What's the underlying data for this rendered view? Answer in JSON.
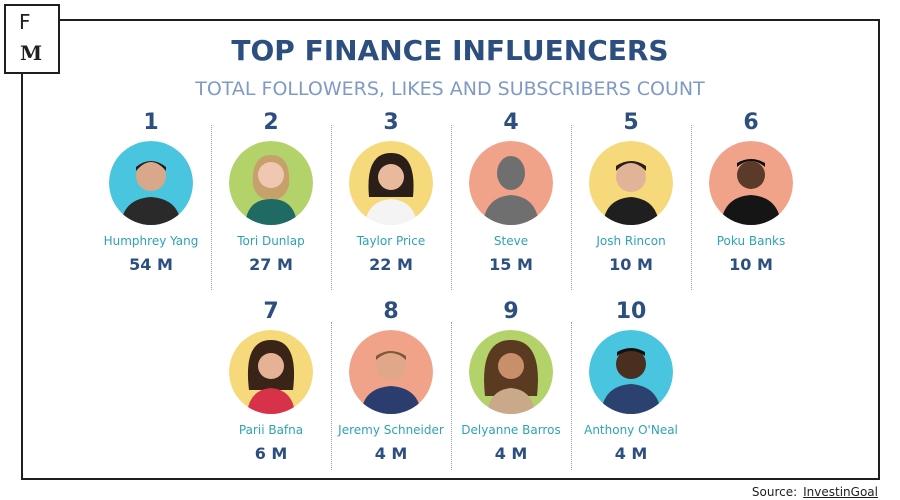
{
  "logo": {
    "letter_top": "F",
    "letter_bottom": "M"
  },
  "title": "TOP FINANCE INFLUENCERS",
  "subtitle": "TOTAL FOLLOWERS, LIKES AND SUBSCRIBERS COUNT",
  "colors": {
    "title": "#2c4f80",
    "subtitle": "#7f9ac5",
    "name": "#2da3b3",
    "count": "#2c4f80"
  },
  "influencers": [
    {
      "rank": "1",
      "name": "Humphrey Yang",
      "count": "54 M",
      "avatar_bg": "#49c5df"
    },
    {
      "rank": "2",
      "name": "Tori Dunlap",
      "count": "27 M",
      "avatar_bg": "#b3d26a"
    },
    {
      "rank": "3",
      "name": "Taylor Price",
      "count": "22 M",
      "avatar_bg": "#f6d97b"
    },
    {
      "rank": "4",
      "name": "Steve",
      "count": "15 M",
      "avatar_bg": "#f1a38a"
    },
    {
      "rank": "5",
      "name": "Josh Rincon",
      "count": "10 M",
      "avatar_bg": "#f6d97b"
    },
    {
      "rank": "6",
      "name": "Poku Banks",
      "count": "10 M",
      "avatar_bg": "#f1a38a"
    },
    {
      "rank": "7",
      "name": "Parii Bafna",
      "count": "6 M",
      "avatar_bg": "#f6d97b"
    },
    {
      "rank": "8",
      "name": "Jeremy Schneider",
      "count": "4 M",
      "avatar_bg": "#f1a38a"
    },
    {
      "rank": "9",
      "name": "Delyanne Barros",
      "count": "4 M",
      "avatar_bg": "#b3d26a"
    },
    {
      "rank": "10",
      "name": "Anthony O'Neal",
      "count": "4 M",
      "avatar_bg": "#49c5df"
    }
  ],
  "source": {
    "label": "Source:",
    "link_text": "InvestinGoal"
  }
}
